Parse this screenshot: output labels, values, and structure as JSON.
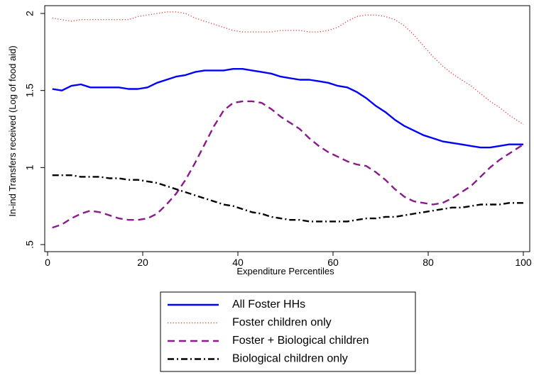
{
  "chart_data": {
    "type": "line",
    "xlabel": "Expenditure Percentiles",
    "ylabel": "In-ind Transfers received (Log of food aid)",
    "xlim": [
      0,
      100
    ],
    "ylim": [
      0.5,
      2.0
    ],
    "xticks": [
      0,
      20,
      40,
      60,
      80,
      100
    ],
    "yticks": [
      0.5,
      1.0,
      1.5,
      2.0
    ],
    "xtick_labels": [
      "0",
      "20",
      "40",
      "60",
      "80",
      "100"
    ],
    "ytick_labels": [
      ".5",
      "1",
      "1.5",
      "2"
    ],
    "grid": false,
    "legend_position": "bottom",
    "series": [
      {
        "name": "All Foster HHs",
        "color": "#0000ff",
        "style": "solid",
        "x": [
          1,
          3,
          5,
          7,
          9,
          11,
          13,
          15,
          17,
          19,
          21,
          23,
          25,
          27,
          29,
          31,
          33,
          35,
          37,
          39,
          41,
          43,
          45,
          47,
          49,
          51,
          53,
          55,
          57,
          59,
          61,
          63,
          65,
          67,
          69,
          71,
          73,
          75,
          77,
          79,
          81,
          83,
          85,
          87,
          89,
          91,
          93,
          95,
          97,
          100
        ],
        "y": [
          1.51,
          1.5,
          1.53,
          1.54,
          1.52,
          1.52,
          1.52,
          1.52,
          1.51,
          1.51,
          1.52,
          1.55,
          1.57,
          1.59,
          1.6,
          1.62,
          1.63,
          1.63,
          1.63,
          1.64,
          1.64,
          1.63,
          1.62,
          1.61,
          1.59,
          1.58,
          1.57,
          1.57,
          1.56,
          1.55,
          1.53,
          1.52,
          1.49,
          1.45,
          1.4,
          1.36,
          1.31,
          1.27,
          1.24,
          1.21,
          1.19,
          1.17,
          1.16,
          1.15,
          1.14,
          1.13,
          1.13,
          1.14,
          1.15,
          1.15
        ]
      },
      {
        "name": "Foster children only",
        "color": "#e8413a",
        "style": "dotted",
        "x": [
          1,
          3,
          5,
          7,
          9,
          11,
          13,
          15,
          17,
          19,
          21,
          23,
          25,
          27,
          29,
          31,
          33,
          35,
          37,
          39,
          41,
          43,
          45,
          47,
          49,
          51,
          53,
          55,
          57,
          59,
          61,
          63,
          65,
          67,
          69,
          71,
          73,
          75,
          77,
          79,
          81,
          83,
          85,
          87,
          89,
          91,
          93,
          95,
          97,
          100
        ],
        "y": [
          1.97,
          1.96,
          1.95,
          1.96,
          1.96,
          1.96,
          1.96,
          1.96,
          1.96,
          1.98,
          1.99,
          2.0,
          2.01,
          2.01,
          2.0,
          1.97,
          1.95,
          1.93,
          1.91,
          1.89,
          1.88,
          1.88,
          1.88,
          1.88,
          1.89,
          1.89,
          1.89,
          1.88,
          1.88,
          1.89,
          1.91,
          1.95,
          1.98,
          1.99,
          1.99,
          1.98,
          1.96,
          1.92,
          1.86,
          1.79,
          1.72,
          1.66,
          1.61,
          1.57,
          1.53,
          1.48,
          1.43,
          1.39,
          1.34,
          1.28
        ]
      },
      {
        "name": "Foster + Biological children",
        "color": "#8b1a8b",
        "style": "dashed",
        "x": [
          1,
          3,
          5,
          7,
          9,
          11,
          13,
          15,
          17,
          19,
          21,
          23,
          25,
          27,
          29,
          31,
          33,
          35,
          37,
          39,
          41,
          43,
          45,
          47,
          49,
          51,
          53,
          55,
          57,
          59,
          61,
          63,
          65,
          67,
          69,
          71,
          73,
          75,
          77,
          79,
          81,
          83,
          85,
          87,
          89,
          91,
          93,
          95,
          97,
          100
        ],
        "y": [
          0.61,
          0.63,
          0.67,
          0.7,
          0.72,
          0.71,
          0.69,
          0.67,
          0.66,
          0.66,
          0.67,
          0.7,
          0.76,
          0.83,
          0.92,
          1.03,
          1.15,
          1.27,
          1.37,
          1.42,
          1.43,
          1.43,
          1.42,
          1.38,
          1.33,
          1.29,
          1.25,
          1.19,
          1.14,
          1.1,
          1.07,
          1.04,
          1.02,
          1.01,
          0.97,
          0.92,
          0.86,
          0.81,
          0.78,
          0.77,
          0.76,
          0.77,
          0.8,
          0.84,
          0.88,
          0.94,
          1.0,
          1.05,
          1.09,
          1.15
        ]
      },
      {
        "name": "Biological children only",
        "color": "#000000",
        "style": "dashdot",
        "x": [
          1,
          3,
          5,
          7,
          9,
          11,
          13,
          15,
          17,
          19,
          21,
          23,
          25,
          27,
          29,
          31,
          33,
          35,
          37,
          39,
          41,
          43,
          45,
          47,
          49,
          51,
          53,
          55,
          57,
          59,
          61,
          63,
          65,
          67,
          69,
          71,
          73,
          75,
          77,
          79,
          81,
          83,
          85,
          87,
          89,
          91,
          93,
          95,
          97,
          100
        ],
        "y": [
          0.95,
          0.95,
          0.95,
          0.94,
          0.94,
          0.94,
          0.93,
          0.93,
          0.92,
          0.92,
          0.91,
          0.9,
          0.88,
          0.86,
          0.84,
          0.82,
          0.8,
          0.78,
          0.76,
          0.75,
          0.73,
          0.71,
          0.7,
          0.68,
          0.67,
          0.66,
          0.66,
          0.65,
          0.65,
          0.65,
          0.65,
          0.65,
          0.66,
          0.67,
          0.67,
          0.68,
          0.68,
          0.69,
          0.7,
          0.71,
          0.72,
          0.73,
          0.74,
          0.74,
          0.75,
          0.76,
          0.76,
          0.76,
          0.77,
          0.77
        ]
      }
    ]
  }
}
